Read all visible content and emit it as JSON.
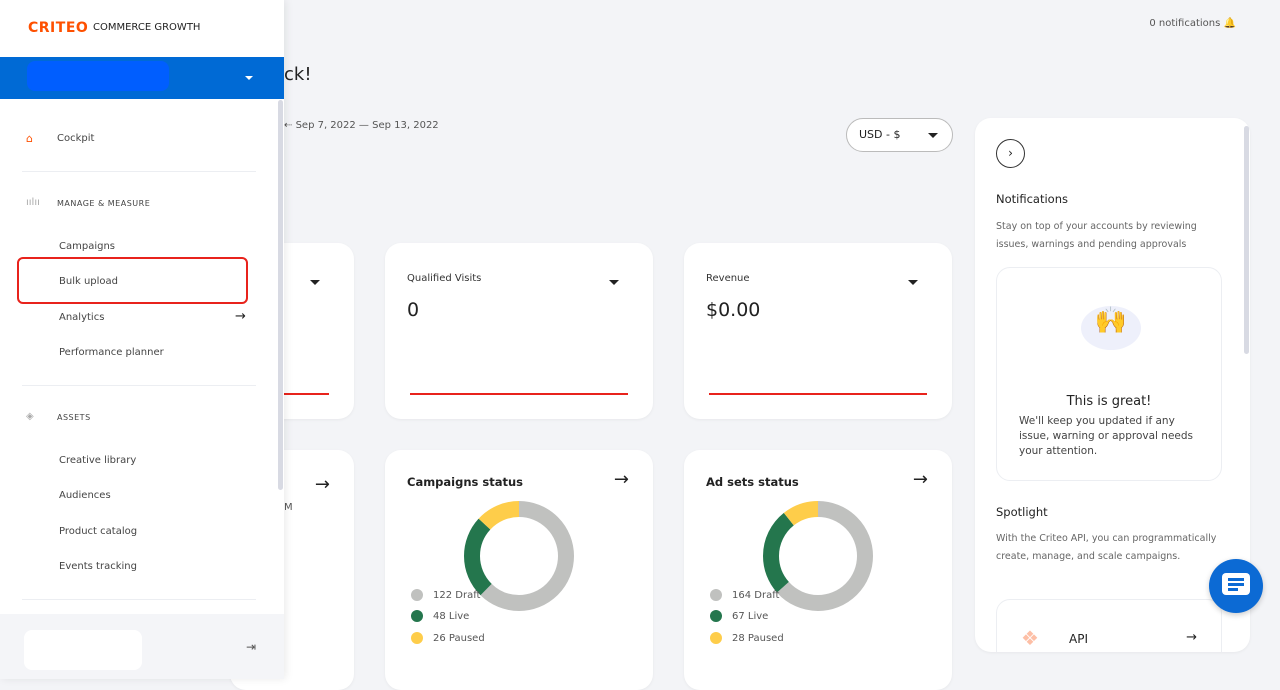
{
  "brand": {
    "logo": "CRITEO",
    "product": "COMMERCE GROWTH"
  },
  "header": {
    "notifications": "0 notifications",
    "greeting_fragment": "ck!",
    "date_range": "Sep 7, 2022 — Sep 13, 2022",
    "currency": "USD - $"
  },
  "sidebar": {
    "cockpit": "Cockpit",
    "manage_section": "MANAGE & MEASURE",
    "manage_items": [
      "Campaigns",
      "Bulk upload",
      "Analytics",
      "Performance planner"
    ],
    "assets_section": "ASSETS",
    "asset_items": [
      "Creative library",
      "Audiences",
      "Product catalog",
      "Events tracking"
    ]
  },
  "kpis": [
    {
      "title": "Qualified Visits",
      "value": "0"
    },
    {
      "title": "Revenue",
      "value": "$0.00"
    }
  ],
  "partial_card_text": "M",
  "status_cards": [
    {
      "title": "Campaigns status",
      "legend": [
        "122 Draft",
        "48 Live",
        "26 Paused"
      ],
      "values": [
        122,
        48,
        26
      ]
    },
    {
      "title": "Ad sets status",
      "legend": [
        "164 Draft",
        "67 Live",
        "28 Paused"
      ],
      "values": [
        164,
        67,
        28
      ]
    }
  ],
  "colors": {
    "draft": "#c0c1bf",
    "live": "#24764d",
    "paused": "#fecd4a",
    "accent": "#006ad5",
    "brand": "#fe5000",
    "highlight": "#e8231c"
  },
  "panel": {
    "notif_title": "Notifications",
    "notif_desc": "Stay on top of your accounts by reviewing issues, warnings and pending approvals",
    "great_title": "This is great!",
    "great_desc": "We'll keep you updated if any issue, warning or approval needs your attention.",
    "spot_title": "Spotlight",
    "spot_desc": "With the Criteo API, you can programmatically create, manage, and scale campaigns.",
    "api_label": "API"
  }
}
